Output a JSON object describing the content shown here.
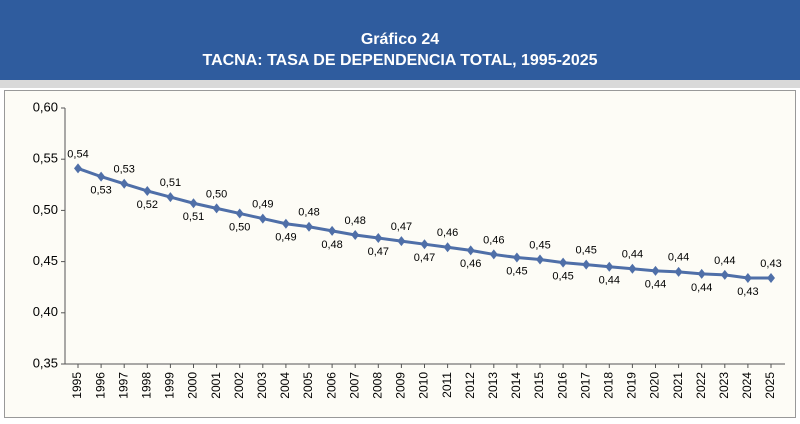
{
  "chart_data": {
    "type": "line",
    "title": "Gráfico 24",
    "subtitle": "TACNA: TASA DE DEPENDENCIA TOTAL, 1995-2025",
    "categories": [
      "1995",
      "1996",
      "1997",
      "1998",
      "1999",
      "2000",
      "2001",
      "2002",
      "2003",
      "2004",
      "2005",
      "2006",
      "2007",
      "2008",
      "2009",
      "2010",
      "2011",
      "2012",
      "2013",
      "2014",
      "2015",
      "2016",
      "2017",
      "2018",
      "2019",
      "2020",
      "2021",
      "2022",
      "2023",
      "2024",
      "2025"
    ],
    "values": [
      0.541,
      0.533,
      0.526,
      0.519,
      0.513,
      0.507,
      0.502,
      0.497,
      0.492,
      0.487,
      0.484,
      0.48,
      0.476,
      0.473,
      0.47,
      0.467,
      0.464,
      0.461,
      0.457,
      0.454,
      0.452,
      0.449,
      0.447,
      0.445,
      0.443,
      0.441,
      0.44,
      0.438,
      0.437,
      0.434,
      0.434
    ],
    "value_labels": [
      "0,54",
      "0,53",
      "0,53",
      "0,52",
      "0,51",
      "0,51",
      "0,50",
      "0,50",
      "0,49",
      "0,49",
      "0,48",
      "0,48",
      "0,48",
      "0,47",
      "0,47",
      "0,47",
      "0,46",
      "0,46",
      "0,46",
      "0,45",
      "0,45",
      "0,45",
      "0,45",
      "0,44",
      "0,44",
      "0,44",
      "0,44",
      "0,44",
      "0,44",
      "0,43",
      "0,43"
    ],
    "color": "#4f6fa8",
    "ylim": [
      0.35,
      0.6
    ],
    "yticks": [
      {
        "value": 0.35,
        "label": "0,35"
      },
      {
        "value": 0.4,
        "label": "0,40"
      },
      {
        "value": 0.45,
        "label": "0,45"
      },
      {
        "value": 0.5,
        "label": "0,50"
      },
      {
        "value": 0.55,
        "label": "0,55"
      },
      {
        "value": 0.6,
        "label": "0,60"
      }
    ]
  }
}
